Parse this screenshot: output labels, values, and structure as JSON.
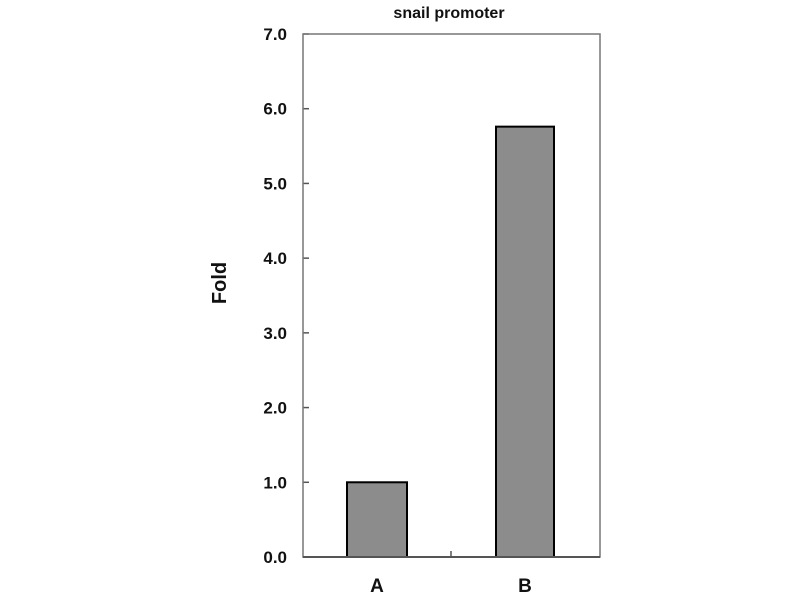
{
  "chart_data": {
    "type": "bar",
    "title": "snail promoter",
    "xlabel": "",
    "ylabel": "Fold",
    "categories": [
      "A",
      "B"
    ],
    "values": [
      1.0,
      5.76
    ],
    "ylim": [
      0,
      7
    ],
    "yticks": [
      "0.0",
      "1.0",
      "2.0",
      "3.0",
      "4.0",
      "5.0",
      "6.0",
      "7.0"
    ],
    "grid": false,
    "bar_color": "#8c8c8c",
    "bar_edge_color": "#000000"
  }
}
